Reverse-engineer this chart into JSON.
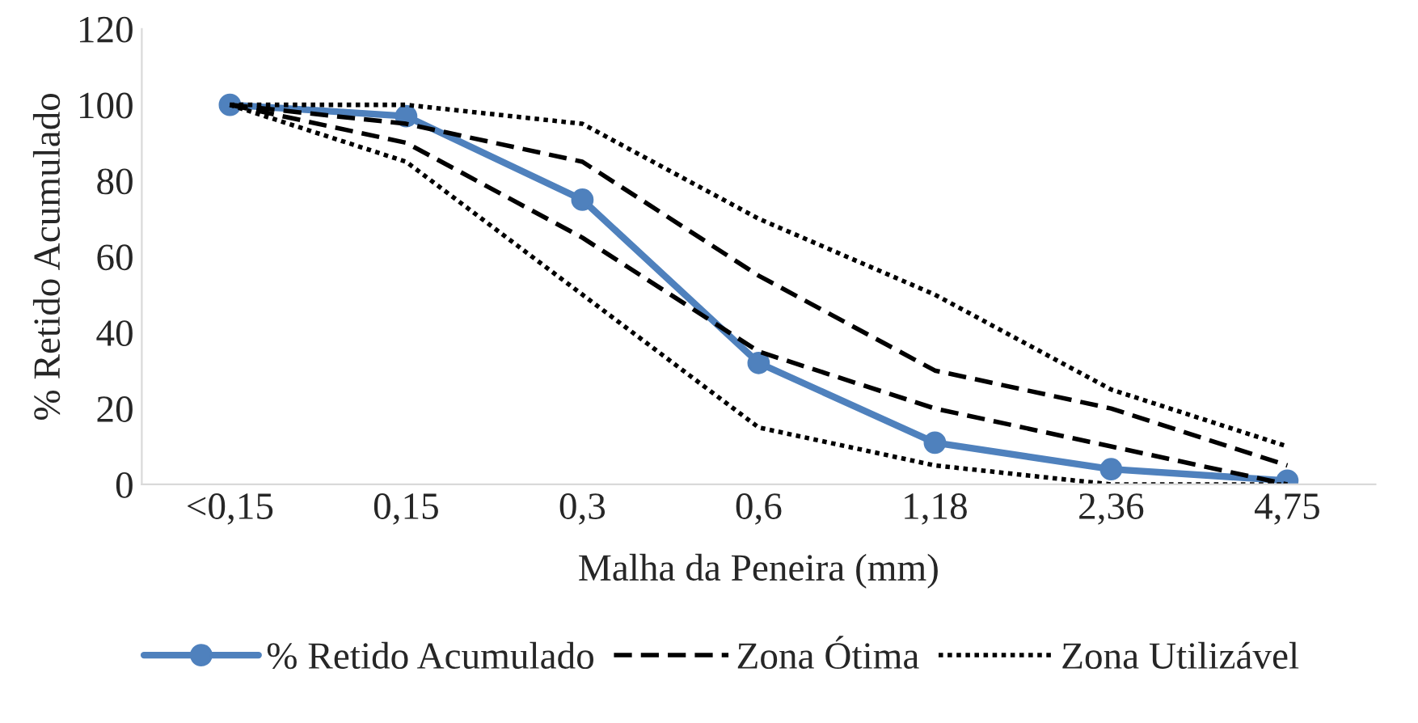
{
  "chart_data": {
    "type": "line",
    "xlabel": "Malha da Peneira (mm)",
    "ylabel": "% Retido Acumulado",
    "categories": [
      "<0,15",
      "0,15",
      "0,3",
      "0,6",
      "1,18",
      "2,36",
      "4,75"
    ],
    "ylim": [
      0,
      120
    ],
    "yticks": [
      0,
      20,
      40,
      60,
      80,
      100,
      120
    ],
    "grid": false,
    "legend": "bottom",
    "series": [
      {
        "name": "% Retido Acumulado",
        "color": "#4f81bd",
        "values": [
          100,
          97,
          75,
          32,
          11,
          4,
          1
        ],
        "marker": "circle",
        "line_style": "solid"
      },
      {
        "name": "Zona Ótima",
        "color": "#000000",
        "values": [
          100,
          95,
          85,
          55,
          30,
          20,
          5
        ],
        "marker": "none",
        "line_style": "dashed"
      },
      {
        "color": "#000000",
        "values": [
          100,
          90,
          65,
          35,
          20,
          10,
          0
        ],
        "marker": "none",
        "line_style": "dashed"
      },
      {
        "name": "Zona Utilizável",
        "color": "#000000",
        "values": [
          100,
          100,
          95,
          70,
          50,
          25,
          10
        ],
        "marker": "none",
        "line_style": "dotted"
      },
      {
        "color": "#000000",
        "values": [
          100,
          85,
          50,
          15,
          5,
          0,
          0
        ],
        "marker": "none",
        "line_style": "dotted"
      }
    ]
  }
}
